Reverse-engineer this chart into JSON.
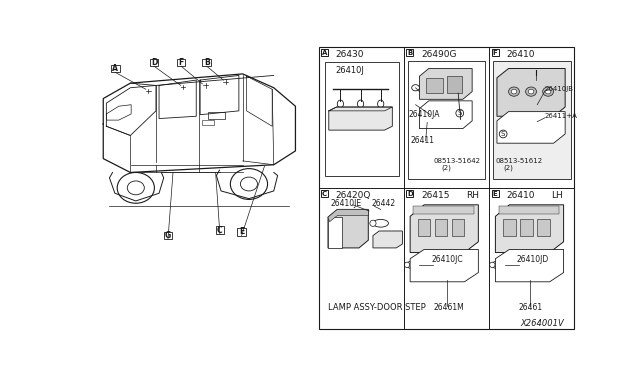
{
  "bg_color": "#ffffff",
  "line_color": "#1a1a1a",
  "watermark": "X264001V",
  "sections": {
    "A_part": "26430",
    "A_sub": "26410J",
    "B_part": "26490G",
    "B_sub1": "26410JA",
    "B_sub2": "26411",
    "B_sub3": "08513-51642",
    "B_sub3b": "(2)",
    "C_part": "26420Q",
    "C_sub1": "26410JE",
    "C_sub2": "26442",
    "C_caption": "LAMP ASSY-DOOR STEP",
    "D_part": "26415",
    "D_rh": "RH",
    "D_sub1": "26410JC",
    "D_sub2": "26461M",
    "E_part": "26410",
    "E_lh": "LH",
    "E_sub1": "26410JD",
    "E_sub2": "26461",
    "F_part": "26410",
    "F_sub1": "26410JB",
    "F_sub2": "26411+A",
    "F_sub3": "08513-51612",
    "F_sub3b": "(2)"
  }
}
